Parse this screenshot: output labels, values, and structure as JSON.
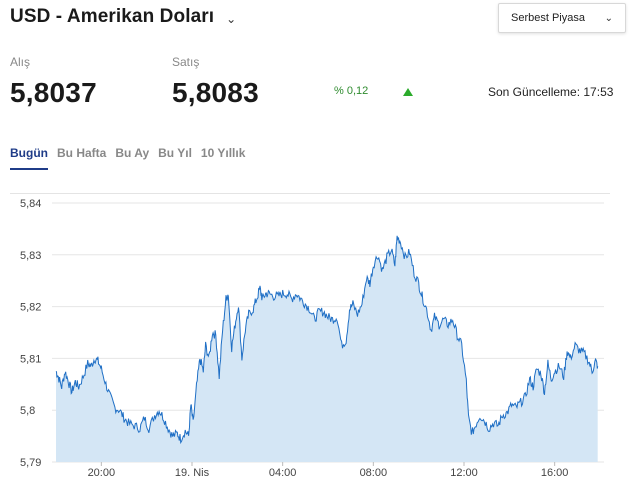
{
  "header": {
    "title": "USD - Amerikan Doları",
    "title_chevron": "⌄",
    "market_select": {
      "selected": "Serbest Piyasa",
      "chevron": "⌄"
    }
  },
  "quote": {
    "buy_label": "Alış",
    "buy_value": "5,8037",
    "sell_label": "Satış",
    "sell_value": "5,8083",
    "change": "% 0,12",
    "change_direction": "up",
    "updated": "Son Güncelleme: 17:53"
  },
  "tabs": [
    {
      "label": "Bugün",
      "active": true
    },
    {
      "label": "Bu Hafta",
      "active": false
    },
    {
      "label": "Bu Ay",
      "active": false
    },
    {
      "label": "Bu Yıl",
      "active": false
    },
    {
      "label": "10 Yıllık",
      "active": false
    }
  ],
  "colors": {
    "line": "#1f6fc5",
    "fill": "#d4e6f5",
    "accent": "#1f3c88",
    "up": "#2bab2b"
  },
  "chart_data": {
    "type": "area",
    "x_tick_labels": [
      "20:00",
      "19. Nis",
      "04:00",
      "08:00",
      "12:00",
      "16:00"
    ],
    "y_tick_labels": [
      "5,84",
      "5,83",
      "5,82",
      "5,81",
      "5,8",
      "5,79"
    ],
    "ylim": [
      5.79,
      5.84
    ],
    "xlim": [
      18.0,
      42.0
    ],
    "x_unit": "hours (18:00 day 1 to 18:00 day 2)",
    "grid": true,
    "series": [
      {
        "values": [
          [
            18.0,
            5.8075
          ],
          [
            18.1,
            5.8065
          ],
          [
            18.25,
            5.8045
          ],
          [
            18.4,
            5.8075
          ],
          [
            18.55,
            5.8055
          ],
          [
            18.7,
            5.8035
          ],
          [
            18.85,
            5.8055
          ],
          [
            19.0,
            5.8045
          ],
          [
            19.2,
            5.8065
          ],
          [
            19.4,
            5.809
          ],
          [
            19.55,
            5.8085
          ],
          [
            19.7,
            5.81
          ],
          [
            19.85,
            5.8095
          ],
          [
            20.0,
            5.808
          ],
          [
            20.2,
            5.805
          ],
          [
            20.4,
            5.8025
          ],
          [
            20.6,
            5.8005
          ],
          [
            20.8,
            5.8
          ],
          [
            21.0,
            5.7985
          ],
          [
            21.2,
            5.7975
          ],
          [
            21.45,
            5.797
          ],
          [
            21.7,
            5.7965
          ],
          [
            21.9,
            5.7985
          ],
          [
            22.1,
            5.7965
          ],
          [
            22.35,
            5.799
          ],
          [
            22.55,
            5.8
          ],
          [
            22.75,
            5.7985
          ],
          [
            22.95,
            5.7965
          ],
          [
            23.15,
            5.795
          ],
          [
            23.35,
            5.7955
          ],
          [
            23.5,
            5.7945
          ],
          [
            23.7,
            5.796
          ],
          [
            23.85,
            5.795
          ],
          [
            23.95,
            5.801
          ],
          [
            24.05,
            5.7975
          ],
          [
            24.2,
            5.8045
          ],
          [
            24.35,
            5.81
          ],
          [
            24.5,
            5.8075
          ],
          [
            24.6,
            5.8125
          ],
          [
            24.75,
            5.81
          ],
          [
            24.9,
            5.815
          ],
          [
            25.05,
            5.8145
          ],
          [
            25.2,
            5.8065
          ],
          [
            25.35,
            5.8155
          ],
          [
            25.5,
            5.8215
          ],
          [
            25.6,
            5.8225
          ],
          [
            25.75,
            5.812
          ],
          [
            25.9,
            5.8165
          ],
          [
            26.05,
            5.8205
          ],
          [
            26.2,
            5.81
          ],
          [
            26.35,
            5.8155
          ],
          [
            26.5,
            5.8185
          ],
          [
            26.7,
            5.8195
          ],
          [
            26.85,
            5.8215
          ],
          [
            27.0,
            5.8235
          ],
          [
            27.1,
            5.8215
          ],
          [
            27.25,
            5.8225
          ],
          [
            27.4,
            5.8225
          ],
          [
            27.6,
            5.822
          ],
          [
            27.8,
            5.822
          ],
          [
            28.0,
            5.8225
          ],
          [
            28.2,
            5.8225
          ],
          [
            28.4,
            5.8215
          ],
          [
            28.6,
            5.8225
          ],
          [
            28.8,
            5.8215
          ],
          [
            29.0,
            5.8205
          ],
          [
            29.2,
            5.8195
          ],
          [
            29.4,
            5.8175
          ],
          [
            29.6,
            5.819
          ],
          [
            29.8,
            5.819
          ],
          [
            30.0,
            5.818
          ],
          [
            30.2,
            5.8175
          ],
          [
            30.4,
            5.818
          ],
          [
            30.6,
            5.8125
          ],
          [
            30.8,
            5.8135
          ],
          [
            30.95,
            5.8195
          ],
          [
            31.1,
            5.8205
          ],
          [
            31.3,
            5.8185
          ],
          [
            31.5,
            5.8205
          ],
          [
            31.7,
            5.8255
          ],
          [
            31.85,
            5.8245
          ],
          [
            32.0,
            5.828
          ],
          [
            32.2,
            5.83
          ],
          [
            32.4,
            5.827
          ],
          [
            32.6,
            5.8295
          ],
          [
            32.8,
            5.831
          ],
          [
            32.95,
            5.828
          ],
          [
            33.05,
            5.8335
          ],
          [
            33.2,
            5.8325
          ],
          [
            33.4,
            5.8295
          ],
          [
            33.6,
            5.8305
          ],
          [
            33.8,
            5.8265
          ],
          [
            34.0,
            5.8245
          ],
          [
            34.15,
            5.822
          ],
          [
            34.35,
            5.8195
          ],
          [
            34.55,
            5.8155
          ],
          [
            34.7,
            5.818
          ],
          [
            34.9,
            5.8165
          ],
          [
            35.1,
            5.8175
          ],
          [
            35.3,
            5.8165
          ],
          [
            35.5,
            5.8175
          ],
          [
            35.7,
            5.8145
          ],
          [
            35.9,
            5.8125
          ],
          [
            36.1,
            5.8055
          ],
          [
            36.2,
            5.7985
          ],
          [
            36.35,
            5.7955
          ],
          [
            36.5,
            5.797
          ],
          [
            36.7,
            5.799
          ],
          [
            36.9,
            5.798
          ],
          [
            37.1,
            5.7965
          ],
          [
            37.3,
            5.7975
          ],
          [
            37.5,
            5.797
          ],
          [
            37.7,
            5.799
          ],
          [
            37.9,
            5.7995
          ],
          [
            38.1,
            5.801
          ],
          [
            38.3,
            5.8005
          ],
          [
            38.5,
            5.8015
          ],
          [
            38.7,
            5.8025
          ],
          [
            38.9,
            5.806
          ],
          [
            39.05,
            5.8045
          ],
          [
            39.2,
            5.808
          ],
          [
            39.4,
            5.807
          ],
          [
            39.55,
            5.8035
          ],
          [
            39.7,
            5.809
          ],
          [
            39.85,
            5.806
          ],
          [
            40.0,
            5.8075
          ],
          [
            40.2,
            5.8085
          ],
          [
            40.4,
            5.8065
          ],
          [
            40.55,
            5.8115
          ],
          [
            40.7,
            5.81
          ],
          [
            40.9,
            5.8125
          ],
          [
            41.1,
            5.8115
          ],
          [
            41.3,
            5.811
          ],
          [
            41.5,
            5.8095
          ],
          [
            41.65,
            5.8075
          ],
          [
            41.8,
            5.8095
          ],
          [
            41.9,
            5.8085
          ]
        ]
      }
    ]
  }
}
